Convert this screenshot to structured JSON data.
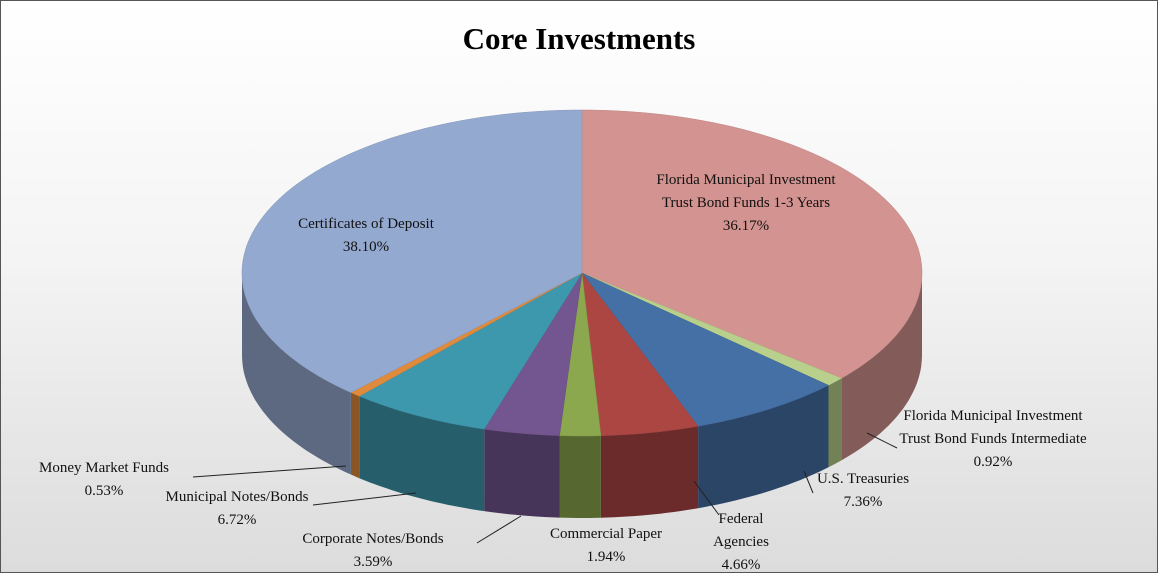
{
  "chart_data": {
    "type": "pie",
    "title": "Core Investments",
    "categories": [
      "Florida Municipal Investment Trust Bond Funds 1-3 Years",
      "Florida Municipal Investment Trust Bond Funds Intermediate",
      "U.S. Treasuries",
      "Federal Agencies",
      "Commercial Paper",
      "Corporate Notes/Bonds",
      "Municipal Notes/Bonds",
      "Money Market Funds",
      "Certificates of Deposit"
    ],
    "values": [
      36.17,
      0.92,
      7.36,
      4.66,
      1.94,
      3.59,
      6.72,
      0.53,
      38.1
    ],
    "value_labels": [
      "36.17%",
      "0.92%",
      "7.36%",
      "4.66%",
      "1.94%",
      "3.59%",
      "6.72%",
      "0.53%",
      "38.10%"
    ],
    "colors": [
      "#d39390",
      "#b9d08c",
      "#4570a6",
      "#ac4643",
      "#8ba84e",
      "#735590",
      "#3d98ad",
      "#e08a3c",
      "#94a9d0"
    ]
  }
}
